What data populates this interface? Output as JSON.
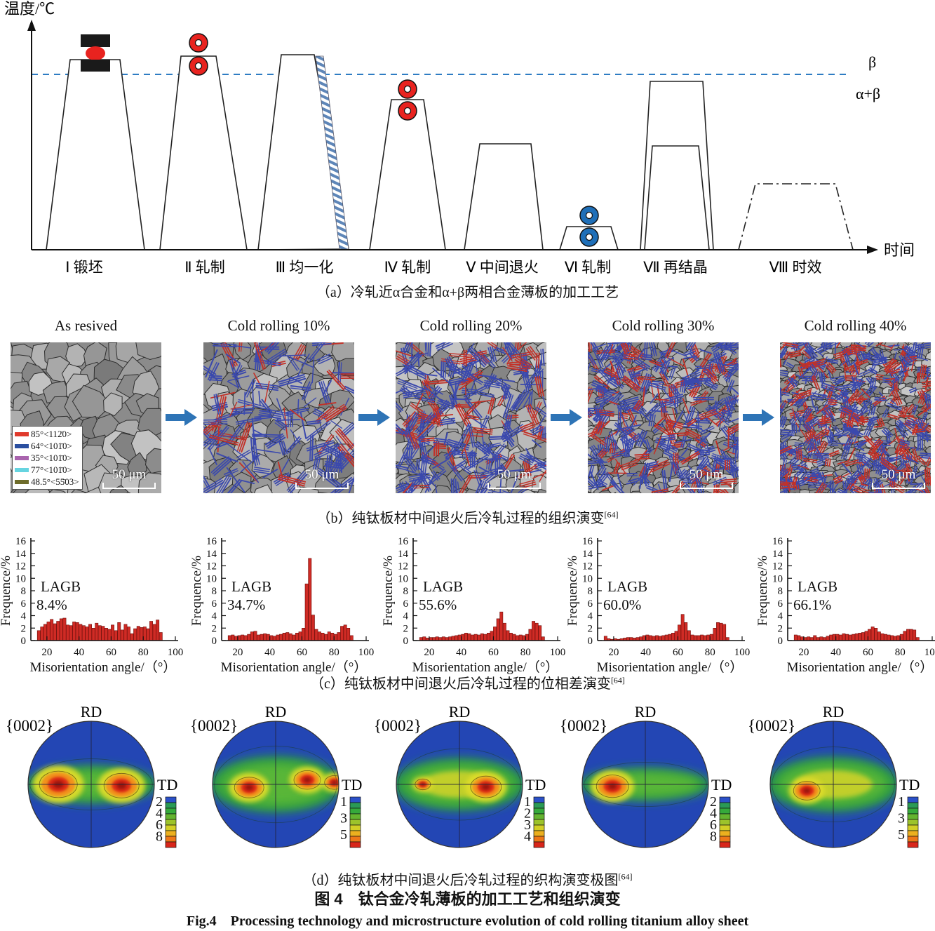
{
  "panel_a": {
    "temp_axis_label": "温度/℃",
    "time_axis_label": "时间",
    "beta_label": "β",
    "alpha_beta_label": "α+β",
    "steps": [
      {
        "label": "Ⅰ 锻坯"
      },
      {
        "label": "Ⅱ 轧制"
      },
      {
        "label": "Ⅲ 均一化"
      },
      {
        "label": "Ⅳ 轧制"
      },
      {
        "label": "Ⅴ 中间退火"
      },
      {
        "label": "Ⅵ 轧制"
      },
      {
        "label": "Ⅶ 再结晶"
      },
      {
        "label": "Ⅷ 时效"
      }
    ],
    "caption": "（a）冷轧近α合金和α+β两相合金薄板的加工工艺"
  },
  "panel_b": {
    "column_titles": [
      "As resived",
      "Cold rolling 10%",
      "Cold rolling 20%",
      "Cold rolling 30%",
      "Cold rolling 40%"
    ],
    "legend": [
      {
        "label": "85°<112̄0>",
        "color": "#e03a2c"
      },
      {
        "label": "64°<101̄0>",
        "color": "#2b4fa0"
      },
      {
        "label": "35°<101̄0>",
        "color": "#a964ae"
      },
      {
        "label": "77°<101̄0>",
        "color": "#66d4e0"
      },
      {
        "label": "48.5°<55̄03>",
        "color": "#6e6c2b"
      }
    ],
    "scale_bar_label": "50 μm",
    "caption": "（b）纯钛板材中间退火后冷轧过程的组织演变",
    "caption_ref": "[64]"
  },
  "chart_data": [
    {
      "type": "bar",
      "title": "",
      "xlabel": "Misorientation angle/（°）",
      "ylabel": "Frequence/%",
      "xlim": [
        10,
        100
      ],
      "ylim": [
        0,
        16
      ],
      "xticks": [
        20,
        40,
        60,
        80,
        100
      ],
      "ytick_step": 2,
      "bin_start": 14,
      "bin_width": 2,
      "lagb_label": "LAGB",
      "lagb_value": "8.4%",
      "values": [
        1.6,
        2.2,
        2.6,
        3.0,
        3.4,
        2.7,
        3.1,
        3.5,
        3.6,
        2.5,
        2.4,
        3.0,
        2.9,
        2.6,
        2.4,
        2.2,
        2.6,
        2.0,
        2.8,
        2.4,
        2.3,
        2.0,
        1.8,
        2.5,
        1.6,
        2.9,
        1.7,
        2.6,
        2.2,
        1.1,
        1.9,
        2.3,
        2.1,
        2.2,
        1.9,
        3.1,
        2.6,
        3.3,
        1.3
      ]
    },
    {
      "type": "bar",
      "title": "",
      "xlabel": "Misorientation angle/（°）",
      "ylabel": "Frequence/%",
      "xlim": [
        10,
        100
      ],
      "ylim": [
        0,
        16
      ],
      "xticks": [
        20,
        40,
        60,
        80,
        100
      ],
      "ytick_step": 2,
      "bin_start": 14,
      "bin_width": 2,
      "lagb_label": "LAGB",
      "lagb_value": "34.7%",
      "values": [
        0.8,
        0.9,
        0.7,
        0.8,
        0.9,
        0.8,
        1.0,
        1.4,
        1.5,
        0.9,
        1.0,
        1.1,
        1.0,
        0.8,
        0.7,
        0.9,
        1.0,
        1.2,
        1.3,
        1.1,
        0.9,
        1.2,
        1.4,
        2.0,
        9.1,
        13.2,
        4.1,
        1.8,
        1.4,
        1.2,
        1.0,
        1.4,
        1.2,
        1.0,
        1.3,
        2.3,
        2.5,
        2.0,
        0.8
      ]
    },
    {
      "type": "bar",
      "title": "",
      "xlabel": "Misorientation angle/（°）",
      "ylabel": "Frequence/%",
      "xlim": [
        10,
        100
      ],
      "ylim": [
        0,
        16
      ],
      "xticks": [
        20,
        40,
        60,
        80,
        100
      ],
      "ytick_step": 2,
      "bin_start": 14,
      "bin_width": 2,
      "lagb_label": "LAGB",
      "lagb_value": "55.6%",
      "values": [
        0.5,
        0.6,
        0.4,
        0.5,
        0.5,
        0.6,
        0.5,
        0.6,
        0.5,
        0.6,
        0.7,
        0.8,
        0.9,
        1.0,
        1.2,
        1.1,
        0.9,
        1.0,
        0.9,
        1.1,
        1.0,
        1.2,
        1.5,
        2.2,
        3.5,
        4.6,
        2.8,
        1.6,
        1.2,
        1.0,
        0.8,
        0.9,
        0.8,
        1.0,
        1.8,
        3.1,
        2.8,
        2.4,
        0.6
      ]
    },
    {
      "type": "bar",
      "title": "",
      "xlabel": "Misorientation angle/（°）",
      "ylabel": "Frequence/%",
      "xlim": [
        10,
        100
      ],
      "ylim": [
        0,
        16
      ],
      "xticks": [
        20,
        40,
        60,
        80,
        100
      ],
      "ytick_step": 2,
      "bin_start": 14,
      "bin_width": 2,
      "lagb_label": "LAGB",
      "lagb_value": "60.0%",
      "values": [
        0.7,
        0.3,
        0.2,
        0.3,
        0.2,
        0.3,
        0.4,
        0.5,
        0.5,
        0.4,
        0.5,
        0.6,
        0.8,
        0.9,
        0.8,
        0.7,
        0.8,
        0.7,
        0.8,
        0.9,
        1.0,
        1.2,
        1.5,
        2.5,
        4.2,
        2.9,
        1.6,
        0.9,
        0.8,
        0.8,
        0.9,
        0.8,
        0.9,
        1.0,
        2.0,
        2.9,
        2.8,
        2.6,
        0.5
      ]
    },
    {
      "type": "bar",
      "title": "",
      "xlabel": "Misorientation angle/（°）",
      "ylabel": "Frequence/%",
      "xlim": [
        10,
        100
      ],
      "ylim": [
        0,
        16
      ],
      "xticks": [
        20,
        40,
        60,
        80,
        100
      ],
      "ytick_step": 2,
      "bin_start": 14,
      "bin_width": 2,
      "lagb_label": "LAGB",
      "lagb_value": "66.1%",
      "values": [
        0.9,
        0.8,
        0.6,
        0.5,
        0.6,
        0.5,
        0.8,
        0.5,
        0.6,
        0.5,
        0.7,
        0.9,
        1.0,
        1.0,
        0.9,
        1.1,
        1.0,
        0.9,
        1.0,
        1.1,
        1.2,
        1.3,
        1.5,
        1.8,
        2.2,
        2.0,
        1.4,
        1.1,
        1.0,
        0.9,
        0.8,
        0.7,
        0.8,
        1.0,
        1.5,
        1.8,
        1.8,
        1.7,
        0.5
      ]
    }
  ],
  "panel_c": {
    "caption": "（c）纯钛板材中间退火后冷轧过程的位相差演变",
    "caption_ref": "[64]"
  },
  "panel_d": {
    "plane_label": "{0002}",
    "rd_label": "RD",
    "td_label": "TD",
    "figures": [
      {
        "scale_ticks": [
          2,
          4,
          6,
          8
        ],
        "band": 0.3,
        "yellow_band": false,
        "hotspots": [
          {
            "dx": -0.52,
            "dy": 0.0,
            "s": 1.35
          },
          {
            "dx": 0.48,
            "dy": 0.02,
            "s": 1.25
          }
        ]
      },
      {
        "scale_ticks": [
          1,
          3,
          5
        ],
        "band": 0.45,
        "yellow_band": false,
        "hotspots": [
          {
            "dx": -0.42,
            "dy": 0.05,
            "s": 1.05
          },
          {
            "dx": 0.5,
            "dy": -0.07,
            "s": 0.95
          },
          {
            "dx": 0.93,
            "dy": -0.03,
            "s": 0.7
          }
        ]
      },
      {
        "scale_ticks": [
          1,
          2,
          3,
          4
        ],
        "band": 0.42,
        "yellow_band": true,
        "hotspots": [
          {
            "dx": 0.42,
            "dy": 0.04,
            "s": 1.1
          },
          {
            "dx": -0.58,
            "dy": 0.0,
            "s": 0.55
          }
        ]
      },
      {
        "scale_ticks": [
          2,
          4,
          6,
          8
        ],
        "band": 0.26,
        "yellow_band": false,
        "hotspots": [
          {
            "dx": -0.52,
            "dy": 0.03,
            "s": 1.15
          }
        ]
      },
      {
        "scale_ticks": [
          1,
          3,
          5
        ],
        "band": 0.44,
        "yellow_band": true,
        "hotspots": [
          {
            "dx": -0.42,
            "dy": 0.1,
            "s": 0.95
          }
        ]
      }
    ],
    "caption": "（d）纯钛板材中间退火后冷轧过程的织构演变极图",
    "caption_ref": "[64]"
  },
  "figure_caption_zh": "图 4　钛合金冷轧薄板的加工工艺和组织演变",
  "figure_caption_en": "Fig.4　Processing technology and microstructure evolution of cold rolling titanium alloy sheet"
}
